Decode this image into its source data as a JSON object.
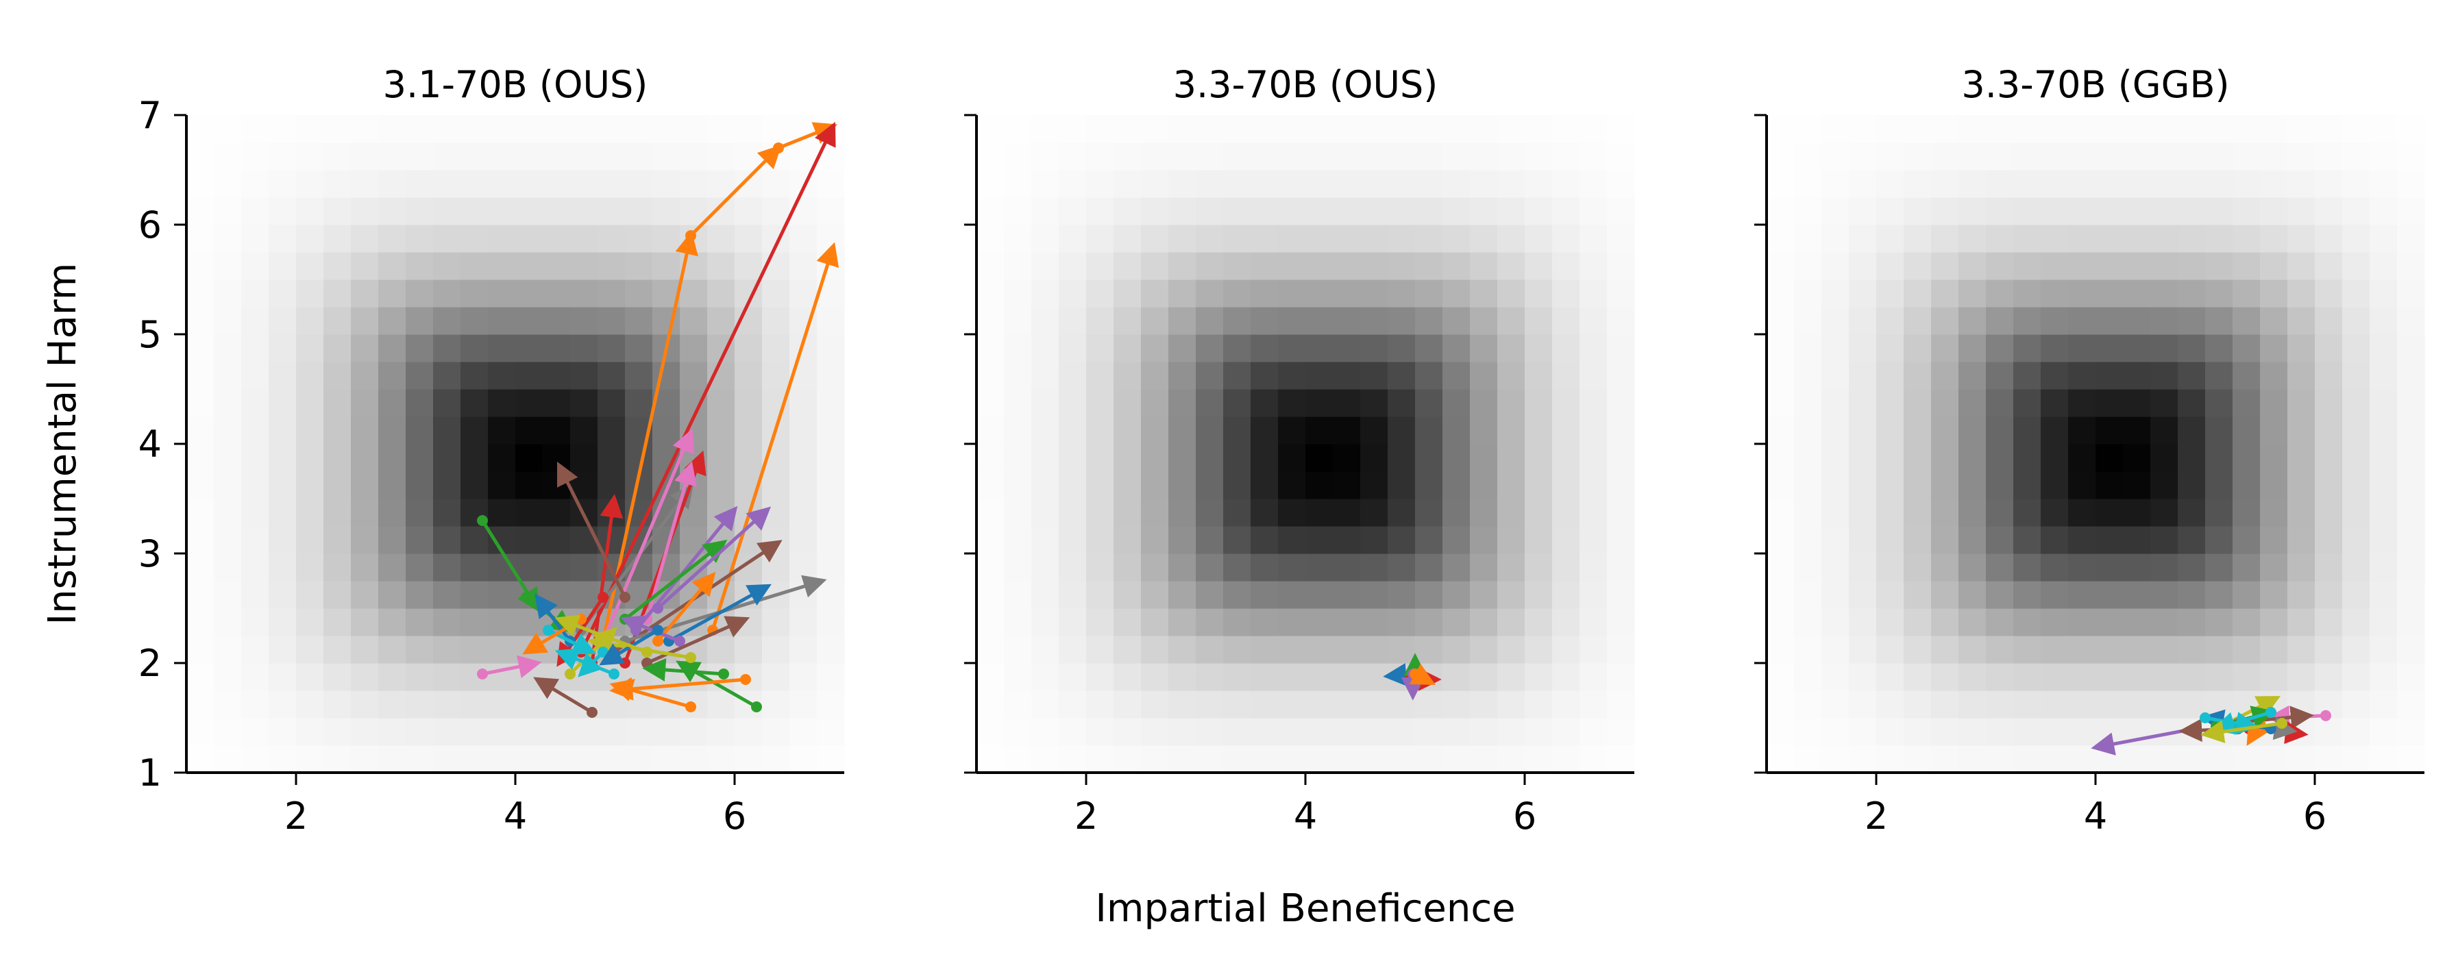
{
  "figure": {
    "xlabel": "Impartial Beneficence",
    "ylabel": "Instrumental Harm"
  },
  "chart_data": [
    {
      "type": "scatter",
      "title": "3.1-70B (OUS)",
      "xlabel": "Impartial Beneficence",
      "ylabel": "Instrumental Harm",
      "xlim": [
        1,
        7
      ],
      "ylim": [
        1,
        7
      ],
      "xticks": [
        2,
        4,
        6
      ],
      "yticks": [
        1,
        2,
        3,
        4,
        5,
        6,
        7
      ],
      "grid": false,
      "background": "grayscale density centered near (4.2, 3.85)",
      "series": [
        {
          "color": "#ff7f0e",
          "from": [
            4.8,
            2.2
          ],
          "to": [
            5.6,
            5.9
          ]
        },
        {
          "color": "#ff7f0e",
          "from": [
            5.6,
            5.9
          ],
          "to": [
            6.4,
            6.7
          ]
        },
        {
          "color": "#ff7f0e",
          "from": [
            6.4,
            6.7
          ],
          "to": [
            6.9,
            6.9
          ]
        },
        {
          "color": "#d62728",
          "from": [
            4.6,
            2.1
          ],
          "to": [
            6.9,
            6.9
          ]
        },
        {
          "color": "#ff7f0e",
          "from": [
            5.8,
            2.3
          ],
          "to": [
            6.9,
            5.8
          ]
        },
        {
          "color": "#d62728",
          "from": [
            4.7,
            2.0
          ],
          "to": [
            4.9,
            3.5
          ]
        },
        {
          "color": "#7f7f7f",
          "from": [
            4.6,
            2.3
          ],
          "to": [
            5.6,
            3.6
          ]
        },
        {
          "color": "#e377c2",
          "from": [
            4.8,
            2.2
          ],
          "to": [
            5.6,
            4.1
          ]
        },
        {
          "color": "#d62728",
          "from": [
            5.0,
            2.0
          ],
          "to": [
            5.7,
            3.9
          ]
        },
        {
          "color": "#e377c2",
          "from": [
            5.2,
            2.4
          ],
          "to": [
            5.6,
            3.8
          ]
        },
        {
          "color": "#9467bd",
          "from": [
            5.1,
            2.3
          ],
          "to": [
            6.0,
            3.4
          ]
        },
        {
          "color": "#2ca02c",
          "from": [
            5.0,
            2.4
          ],
          "to": [
            5.9,
            3.1
          ]
        },
        {
          "color": "#8c564b",
          "from": [
            4.9,
            2.1
          ],
          "to": [
            6.4,
            3.1
          ]
        },
        {
          "color": "#9467bd",
          "from": [
            5.3,
            2.5
          ],
          "to": [
            6.3,
            3.4
          ]
        },
        {
          "color": "#7f7f7f",
          "from": [
            5.0,
            2.2
          ],
          "to": [
            6.8,
            2.75
          ]
        },
        {
          "color": "#1f77b4",
          "from": [
            5.4,
            2.2
          ],
          "to": [
            6.3,
            2.7
          ]
        },
        {
          "color": "#8c564b",
          "from": [
            5.2,
            2.0
          ],
          "to": [
            6.1,
            2.4
          ]
        },
        {
          "color": "#ff7f0e",
          "from": [
            5.3,
            2.2
          ],
          "to": [
            5.8,
            2.8
          ]
        },
        {
          "color": "#8c564b",
          "from": [
            5.0,
            2.6
          ],
          "to": [
            4.4,
            3.8
          ]
        },
        {
          "color": "#2ca02c",
          "from": [
            3.7,
            3.3
          ],
          "to": [
            4.2,
            2.5
          ]
        },
        {
          "color": "#2ca02c",
          "from": [
            4.1,
            2.6
          ],
          "to": [
            4.5,
            2.3
          ]
        },
        {
          "color": "#2ca02c",
          "from": [
            6.2,
            1.6
          ],
          "to": [
            5.5,
            2.0
          ]
        },
        {
          "color": "#ff7f0e",
          "from": [
            6.1,
            1.85
          ],
          "to": [
            4.9,
            1.75
          ]
        },
        {
          "color": "#ff7f0e",
          "from": [
            5.6,
            1.6
          ],
          "to": [
            4.9,
            1.8
          ]
        },
        {
          "color": "#8c564b",
          "from": [
            4.7,
            1.55
          ],
          "to": [
            4.2,
            1.85
          ]
        },
        {
          "color": "#d62728",
          "from": [
            4.8,
            2.6
          ],
          "to": [
            4.4,
            2.0
          ]
        },
        {
          "color": "#e377c2",
          "from": [
            3.7,
            1.9
          ],
          "to": [
            4.2,
            2.0
          ]
        },
        {
          "color": "#bcbd22",
          "from": [
            5.6,
            2.05
          ],
          "to": [
            4.7,
            2.2
          ]
        },
        {
          "color": "#bcbd22",
          "from": [
            4.5,
            1.9
          ],
          "to": [
            4.9,
            2.3
          ]
        },
        {
          "color": "#1f77b4",
          "from": [
            4.5,
            2.2
          ],
          "to": [
            4.2,
            2.6
          ]
        },
        {
          "color": "#17becf",
          "from": [
            4.8,
            2.1
          ],
          "to": [
            4.6,
            1.9
          ]
        },
        {
          "color": "#17becf",
          "from": [
            4.3,
            2.3
          ],
          "to": [
            4.7,
            2.1
          ]
        },
        {
          "color": "#ff7f0e",
          "from": [
            4.6,
            2.4
          ],
          "to": [
            4.1,
            2.1
          ]
        },
        {
          "color": "#9467bd",
          "from": [
            5.5,
            2.2
          ],
          "to": [
            5.0,
            2.4
          ]
        },
        {
          "color": "#1f77b4",
          "from": [
            5.3,
            2.3
          ],
          "to": [
            4.8,
            2.0
          ]
        },
        {
          "color": "#2ca02c",
          "from": [
            5.9,
            1.9
          ],
          "to": [
            5.2,
            1.95
          ]
        },
        {
          "color": "#bcbd22",
          "from": [
            5.2,
            2.1
          ],
          "to": [
            4.4,
            2.4
          ]
        },
        {
          "color": "#17becf",
          "from": [
            4.9,
            1.9
          ],
          "to": [
            4.4,
            2.1
          ]
        }
      ]
    },
    {
      "type": "scatter",
      "title": "3.3-70B (OUS)",
      "xlabel": "Impartial Beneficence",
      "xlim": [
        1,
        7
      ],
      "ylim": [
        1,
        7
      ],
      "xticks": [
        2,
        4,
        6
      ],
      "grid": false,
      "background": "grayscale density centered near (4.2, 3.85)",
      "series": [
        {
          "color": "#1f77b4",
          "from": [
            5.0,
            1.9
          ],
          "to": [
            4.75,
            1.88
          ]
        },
        {
          "color": "#d62728",
          "from": [
            4.95,
            1.85
          ],
          "to": [
            5.2,
            1.85
          ]
        },
        {
          "color": "#2ca02c",
          "from": [
            5.0,
            1.8
          ],
          "to": [
            5.0,
            2.05
          ]
        },
        {
          "color": "#9467bd",
          "from": [
            4.98,
            1.9
          ],
          "to": [
            4.98,
            1.7
          ]
        },
        {
          "color": "#ff7f0e",
          "from": [
            5.0,
            1.9
          ],
          "to": [
            5.15,
            1.82
          ]
        }
      ]
    },
    {
      "type": "scatter",
      "title": "3.3-70B (GGB)",
      "xlabel": "Impartial Beneficence",
      "xlim": [
        1,
        7
      ],
      "ylim": [
        1,
        7
      ],
      "xticks": [
        2,
        4,
        6
      ],
      "grid": false,
      "background": "grayscale density centered near (4.2, 3.85)",
      "series": [
        {
          "color": "#9467bd",
          "from": [
            4.9,
            1.4
          ],
          "to": [
            4.0,
            1.23
          ]
        },
        {
          "color": "#e377c2",
          "from": [
            6.1,
            1.52
          ],
          "to": [
            5.6,
            1.5
          ]
        },
        {
          "color": "#bcbd22",
          "from": [
            5.2,
            1.45
          ],
          "to": [
            5.65,
            1.68
          ]
        },
        {
          "color": "#8c564b",
          "from": [
            5.3,
            1.4
          ],
          "to": [
            4.8,
            1.38
          ]
        },
        {
          "color": "#8c564b",
          "from": [
            5.2,
            1.45
          ],
          "to": [
            5.95,
            1.52
          ]
        },
        {
          "color": "#d62728",
          "from": [
            5.4,
            1.4
          ],
          "to": [
            5.9,
            1.35
          ]
        },
        {
          "color": "#ff7f0e",
          "from": [
            5.5,
            1.45
          ],
          "to": [
            5.4,
            1.28
          ]
        },
        {
          "color": "#7f7f7f",
          "from": [
            5.3,
            1.45
          ],
          "to": [
            5.8,
            1.38
          ]
        },
        {
          "color": "#1f77b4",
          "from": [
            5.6,
            1.4
          ],
          "to": [
            5.0,
            1.5
          ]
        },
        {
          "color": "#2ca02c",
          "from": [
            5.1,
            1.42
          ],
          "to": [
            5.6,
            1.55
          ]
        },
        {
          "color": "#17becf",
          "from": [
            5.0,
            1.5
          ],
          "to": [
            5.45,
            1.42
          ]
        },
        {
          "color": "#17becf",
          "from": [
            5.6,
            1.55
          ],
          "to": [
            5.1,
            1.4
          ]
        },
        {
          "color": "#bcbd22",
          "from": [
            5.7,
            1.45
          ],
          "to": [
            5.0,
            1.35
          ]
        }
      ]
    }
  ]
}
